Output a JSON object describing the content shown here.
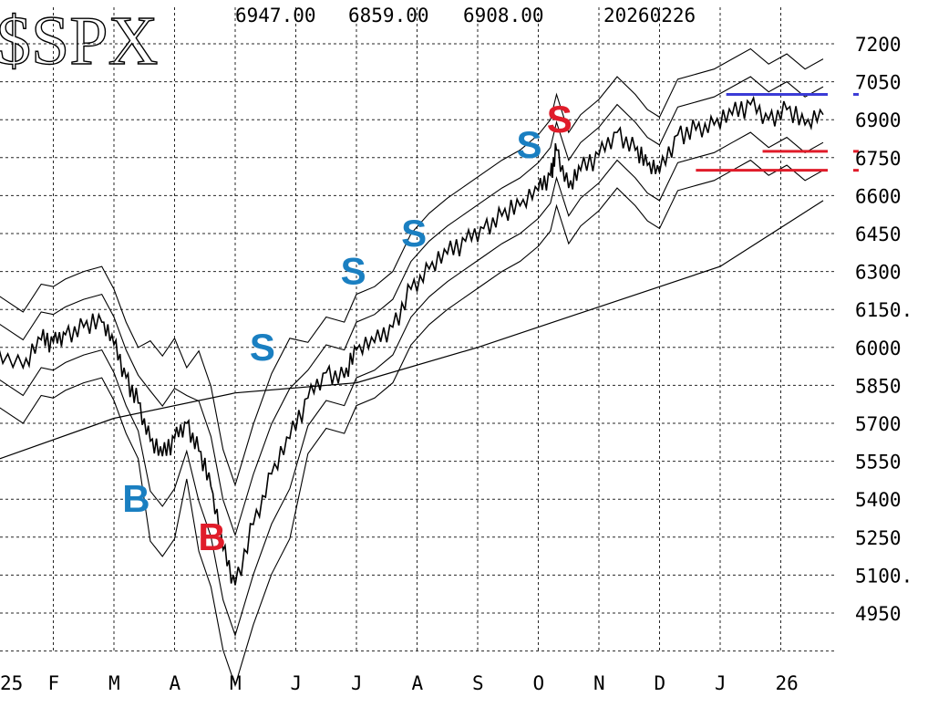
{
  "title": "$SPX",
  "header": {
    "high": "6947.00",
    "low": "6859.00",
    "close": "6908.00",
    "date": "20260226"
  },
  "chart_data": {
    "type": "line",
    "title": "$SPX",
    "xlabel": "",
    "ylabel": "",
    "ylim": [
      4800,
      7260
    ],
    "y_ticks": [
      "7200",
      "7050",
      "6900",
      "6750",
      "6600",
      "6450",
      "6300",
      "6150.",
      "6000",
      "5850",
      "5700",
      "5550",
      "5400",
      "5250",
      "5100.",
      "4950"
    ],
    "x_tick_labels": [
      "25",
      "F",
      "M",
      "A",
      "M",
      "J",
      "J",
      "A",
      "S",
      "O",
      "N",
      "D",
      "J",
      "26"
    ],
    "grid": true,
    "price": {
      "x": [
        0,
        0.5,
        0.8,
        1.0,
        1.2,
        1.5,
        1.8,
        2.0,
        2.2,
        2.4,
        2.6,
        2.8,
        3.0,
        3.2,
        3.4,
        3.6,
        3.8,
        4.0,
        4.3,
        4.6,
        4.9,
        5.2,
        5.5,
        5.8,
        6.0,
        6.3,
        6.6,
        6.9,
        7.2,
        7.5,
        7.8,
        8.1,
        8.4,
        8.7,
        9.0,
        9.2,
        9.3,
        9.5,
        9.7,
        10.0,
        10.3,
        10.6,
        10.8,
        11.0,
        11.3,
        11.6,
        11.9,
        12.2,
        12.5,
        12.8,
        13.1,
        13.4,
        13.7
      ],
      "y": [
        6000,
        5920,
        6030,
        6020,
        6050,
        6080,
        6100,
        6010,
        5880,
        5780,
        5630,
        5570,
        5640,
        5700,
        5590,
        5450,
        5200,
        5060,
        5300,
        5500,
        5640,
        5800,
        5900,
        5880,
        5990,
        6020,
        6080,
        6230,
        6310,
        6370,
        6420,
        6470,
        6520,
        6560,
        6620,
        6680,
        6780,
        6630,
        6700,
        6760,
        6850,
        6780,
        6720,
        6690,
        6840,
        6860,
        6880,
        6920,
        6960,
        6900,
        6940,
        6880,
        6920
      ]
    },
    "ma200": {
      "x": [
        0,
        2,
        4,
        6,
        8,
        10,
        12,
        13.7
      ],
      "y": [
        5550,
        5720,
        5820,
        5860,
        6000,
        6160,
        6320,
        6580
      ]
    },
    "signals": [
      {
        "label": "B",
        "color": "blue",
        "x": 2.35,
        "y": 5400
      },
      {
        "label": "B",
        "color": "red",
        "x": 3.6,
        "y": 5250
      },
      {
        "label": "S",
        "color": "blue",
        "x": 4.45,
        "y": 6000
      },
      {
        "label": "S",
        "color": "blue",
        "x": 5.95,
        "y": 6300
      },
      {
        "label": "S",
        "color": "blue",
        "x": 6.95,
        "y": 6450
      },
      {
        "label": "S",
        "color": "blue",
        "x": 8.85,
        "y": 6800
      },
      {
        "label": "S",
        "color": "red",
        "x": 9.35,
        "y": 6900
      }
    ],
    "levels": [
      {
        "name": "resistance",
        "color": "blue",
        "y": 7000,
        "x_start": 12.1,
        "x_end": 14.3
      },
      {
        "name": "support",
        "color": "red",
        "y": 6775,
        "x_start": 12.7,
        "x_end": 14.3
      },
      {
        "name": "support",
        "color": "red",
        "y": 6700,
        "x_start": 11.6,
        "x_end": 14.3
      }
    ],
    "colors": {
      "blue_signal": "#1a7fc1",
      "red_signal": "#e01c2a",
      "resistance_line": "#3b3bd6",
      "support_line": "#e01c2a",
      "ink": "#000000"
    }
  }
}
